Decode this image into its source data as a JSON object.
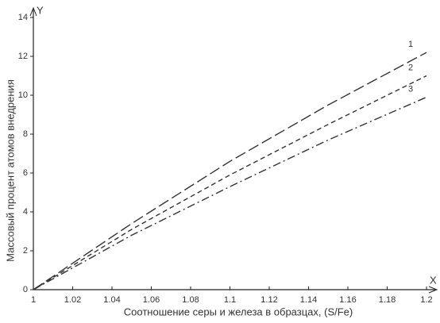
{
  "chart_data": {
    "type": "line",
    "x_axis_letter": "X",
    "y_axis_letter": "Y",
    "xlabel": "Соотношение серы и железа в образцах, (S/Fe)",
    "ylabel": "Массовый процент атомов внедрения",
    "x": [
      1,
      1.05,
      1.1,
      1.15,
      1.2
    ],
    "series": [
      {
        "name": "1",
        "color": "#333333",
        "style": "long-dash",
        "values": [
          0,
          3.4,
          6.6,
          9.5,
          12.2
        ]
      },
      {
        "name": "2",
        "color": "#333333",
        "style": "short-dash",
        "values": [
          0,
          3.1,
          5.9,
          8.5,
          11.0
        ]
      },
      {
        "name": "3",
        "color": "#333333",
        "style": "dash-dot",
        "values": [
          0,
          2.8,
          5.3,
          7.7,
          9.9
        ]
      }
    ],
    "xlim": [
      1,
      1.2
    ],
    "ylim": [
      0,
      14
    ],
    "xticks": [
      1,
      1.02,
      1.04,
      1.06,
      1.08,
      1.1,
      1.12,
      1.14,
      1.16,
      1.18,
      1.2
    ],
    "yticks": [
      0,
      2,
      4,
      6,
      8,
      10,
      12,
      14
    ]
  }
}
